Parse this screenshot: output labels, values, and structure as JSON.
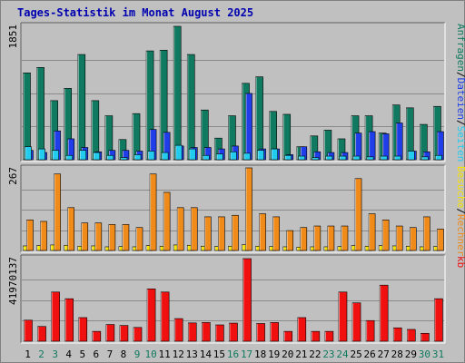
{
  "title": "Tages-Statistik im Monat August 2025",
  "colors": {
    "anfragen": "#0f7a5f",
    "dateien": "#1f3de8",
    "seiten": "#22ccee",
    "besuche": "#f5e100",
    "rechner": "#f08a18",
    "kb": "#f01010",
    "weekend_day_label": "#0f7a5f",
    "weekday_day_label": "#000000",
    "legend_sep": "#000000"
  },
  "chart_data": [
    {
      "type": "bar",
      "panel": "top",
      "y_max_label": "1851",
      "ylim": [
        0,
        1851
      ],
      "grid": true,
      "legend_right": [
        {
          "text": "Anfragen",
          "color_key": "anfragen"
        },
        {
          "text": "/",
          "color_key": "legend_sep"
        },
        {
          "text": "Dateien",
          "color_key": "dateien"
        },
        {
          "text": "/",
          "color_key": "legend_sep"
        },
        {
          "text": "Seiten",
          "color_key": "seiten"
        }
      ],
      "categories": [
        "1",
        "2",
        "3",
        "4",
        "5",
        "6",
        "7",
        "8",
        "9",
        "10",
        "11",
        "12",
        "13",
        "14",
        "15",
        "16",
        "17",
        "18",
        "19",
        "20",
        "21",
        "22",
        "23",
        "24",
        "25",
        "26",
        "27",
        "28",
        "29",
        "30",
        "31"
      ],
      "series": [
        {
          "name": "Anfragen",
          "color_key": "anfragen",
          "values": [
            1205,
            1280,
            820,
            990,
            1460,
            820,
            610,
            280,
            640,
            1510,
            1520,
            1851,
            1460,
            690,
            300,
            610,
            1060,
            1150,
            670,
            630,
            180,
            330,
            410,
            290,
            610,
            610,
            370,
            760,
            720,
            490,
            740
          ]
        },
        {
          "name": "Dateien",
          "color_key": "dateien",
          "values": [
            130,
            100,
            400,
            290,
            170,
            110,
            130,
            130,
            120,
            420,
            380,
            190,
            170,
            170,
            150,
            190,
            920,
            150,
            150,
            70,
            180,
            110,
            100,
            100,
            370,
            390,
            360,
            510,
            120,
            110,
            390
          ]
        },
        {
          "name": "Seiten",
          "color_key": "seiten",
          "values": [
            180,
            150,
            130,
            60,
            130,
            100,
            60,
            30,
            70,
            120,
            100,
            200,
            150,
            60,
            80,
            110,
            90,
            130,
            150,
            60,
            50,
            30,
            50,
            50,
            50,
            40,
            50,
            50,
            120,
            40,
            60
          ]
        }
      ]
    },
    {
      "type": "bar",
      "panel": "middle",
      "y_max_label": "267",
      "ylim": [
        0,
        267
      ],
      "grid": true,
      "legend_right": [
        {
          "text": "Besuche",
          "color_key": "besuche"
        },
        {
          "text": "/",
          "color_key": "legend_sep"
        },
        {
          "text": "Rechner",
          "color_key": "rechner"
        }
      ],
      "categories": [
        "1",
        "2",
        "3",
        "4",
        "5",
        "6",
        "7",
        "8",
        "9",
        "10",
        "11",
        "12",
        "13",
        "14",
        "15",
        "16",
        "17",
        "18",
        "19",
        "20",
        "21",
        "22",
        "23",
        "24",
        "25",
        "26",
        "27",
        "28",
        "29",
        "30",
        "31"
      ],
      "series": [
        {
          "name": "Besuche",
          "color_key": "besuche",
          "values": [
            15,
            16,
            18,
            17,
            14,
            15,
            12,
            13,
            12,
            16,
            14,
            18,
            17,
            14,
            13,
            14,
            19,
            14,
            13,
            12,
            11,
            12,
            12,
            13,
            16,
            14,
            16,
            15,
            14,
            12,
            13
          ]
        },
        {
          "name": "Rechner",
          "color_key": "rechner",
          "values": [
            100,
            95,
            250,
            140,
            90,
            90,
            85,
            85,
            75,
            250,
            190,
            140,
            140,
            110,
            110,
            115,
            270,
            120,
            110,
            65,
            75,
            80,
            80,
            80,
            235,
            120,
            100,
            80,
            75,
            110,
            70
          ]
        }
      ]
    },
    {
      "type": "bar",
      "panel": "bottom",
      "y_max_label": "41970137",
      "ylim": [
        0,
        41970137
      ],
      "grid": true,
      "legend_right": [
        {
          "text": "kb",
          "color_key": "kb"
        }
      ],
      "categories": [
        "1",
        "2",
        "3",
        "4",
        "5",
        "6",
        "7",
        "8",
        "9",
        "10",
        "11",
        "12",
        "13",
        "14",
        "15",
        "16",
        "17",
        "18",
        "19",
        "20",
        "21",
        "22",
        "23",
        "24",
        "25",
        "26",
        "27",
        "28",
        "29",
        "30",
        "31"
      ],
      "series": [
        {
          "name": "kb",
          "color_key": "kb",
          "values": [
            10700000,
            7500000,
            25000000,
            21600000,
            12000000,
            5000000,
            8500000,
            8000000,
            7000000,
            26600000,
            25000000,
            11500000,
            9300000,
            9500000,
            8300000,
            9200000,
            41970137,
            9000000,
            9500000,
            5000000,
            12000000,
            5000000,
            5000000,
            25000000,
            19500000,
            10500000,
            28500000,
            6800000,
            6000000,
            4000000,
            21600000
          ]
        }
      ]
    }
  ]
}
